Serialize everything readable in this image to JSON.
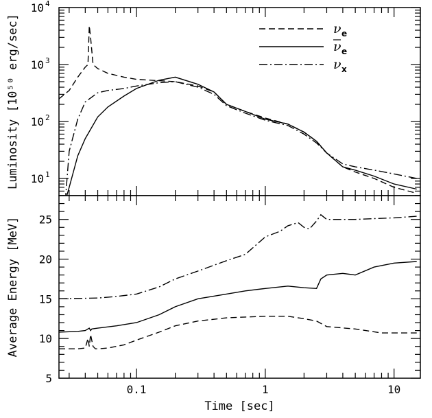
{
  "chart_data": [
    {
      "type": "line",
      "panel": "top",
      "ylabel": "Luminosity [10⁵⁰ erg/sec]",
      "xscale": "log",
      "yscale": "log",
      "xlim": [
        0.025,
        16
      ],
      "ylim": [
        5,
        10000
      ],
      "yticks": [
        10,
        100,
        1000,
        10000
      ],
      "ytick_labels": [
        {
          "base": "10",
          "exp": "1"
        },
        {
          "base": "10",
          "exp": "2"
        },
        {
          "base": "10",
          "exp": "3"
        },
        {
          "base": "10",
          "exp": "4"
        }
      ],
      "legend_position": "top-right",
      "legend": [
        {
          "symbol": "ν",
          "sub": "e",
          "bar": false,
          "style": "dashed"
        },
        {
          "symbol": "ν",
          "sub": "e",
          "bar": true,
          "style": "solid"
        },
        {
          "symbol": "ν",
          "sub": "x",
          "bar": false,
          "style": "dashdot"
        }
      ],
      "series": [
        {
          "style": "dashed",
          "x": [
            0.025,
            0.03,
            0.035,
            0.04,
            0.042,
            0.043,
            0.044,
            0.046,
            0.05,
            0.06,
            0.08,
            0.1,
            0.15,
            0.2,
            0.3,
            0.4,
            0.5,
            0.7,
            1.0,
            1.5,
            2.0,
            2.5,
            3.0,
            4.0,
            5.0,
            7.0,
            10.0,
            15.0
          ],
          "y": [
            250,
            350,
            600,
            900,
            1000,
            4800,
            3000,
            1000,
            850,
            700,
            600,
            550,
            520,
            500,
            420,
            330,
            200,
            150,
            115,
            90,
            65,
            45,
            28,
            16,
            13,
            10,
            7,
            5.5
          ]
        },
        {
          "style": "solid",
          "x": [
            0.028,
            0.03,
            0.035,
            0.04,
            0.05,
            0.06,
            0.08,
            0.1,
            0.15,
            0.2,
            0.3,
            0.4,
            0.5,
            0.7,
            1.0,
            1.5,
            2.0,
            2.5,
            3.0,
            4.0,
            5.0,
            7.0,
            10.0,
            15.0
          ],
          "y": [
            4,
            7,
            25,
            50,
            120,
            180,
            280,
            380,
            530,
            600,
            450,
            330,
            200,
            150,
            110,
            90,
            65,
            45,
            28,
            16,
            14,
            11,
            8,
            6.5
          ]
        },
        {
          "style": "dashdot",
          "x": [
            0.028,
            0.03,
            0.035,
            0.04,
            0.05,
            0.06,
            0.08,
            0.1,
            0.15,
            0.2,
            0.3,
            0.4,
            0.5,
            0.7,
            1.0,
            1.5,
            2.0,
            2.5,
            3.0,
            4.0,
            5.0,
            7.0,
            10.0,
            15.0
          ],
          "y": [
            4,
            30,
            110,
            220,
            320,
            350,
            380,
            420,
            480,
            500,
            400,
            300,
            190,
            140,
            105,
            85,
            60,
            42,
            28,
            18,
            16,
            14,
            12,
            10
          ]
        }
      ]
    },
    {
      "type": "line",
      "panel": "bottom",
      "xlabel": "Time [sec]",
      "ylabel": "Average Energy [MeV]",
      "xscale": "log",
      "xlim": [
        0.025,
        16
      ],
      "ylim": [
        5,
        28
      ],
      "yticks": [
        5,
        10,
        15,
        20,
        25
      ],
      "xticks": [
        0.1,
        1,
        10
      ],
      "xtick_labels": [
        "0.1",
        "1",
        "10"
      ],
      "series": [
        {
          "style": "dashed",
          "x": [
            0.025,
            0.035,
            0.04,
            0.042,
            0.043,
            0.044,
            0.046,
            0.048,
            0.05,
            0.06,
            0.08,
            0.1,
            0.15,
            0.2,
            0.3,
            0.5,
            0.7,
            1.0,
            1.5,
            2.0,
            2.5,
            3.0,
            5.0,
            8.0,
            10.0,
            15.0
          ],
          "y": [
            8.7,
            8.7,
            8.8,
            10.0,
            9.0,
            10.5,
            9.0,
            8.7,
            8.7,
            8.8,
            9.2,
            9.8,
            10.8,
            11.6,
            12.2,
            12.6,
            12.7,
            12.8,
            12.8,
            12.5,
            12.2,
            11.5,
            11.2,
            10.7,
            10.7,
            10.7
          ]
        },
        {
          "style": "solid",
          "x": [
            0.025,
            0.035,
            0.04,
            0.043,
            0.044,
            0.045,
            0.05,
            0.07,
            0.1,
            0.15,
            0.2,
            0.3,
            0.5,
            0.7,
            1.0,
            1.5,
            2.0,
            2.5,
            2.7,
            3.0,
            4.0,
            5.0,
            7.0,
            10.0,
            15.0
          ],
          "y": [
            10.8,
            10.9,
            11.0,
            11.3,
            11.0,
            11.2,
            11.3,
            11.6,
            12.0,
            13.0,
            14.0,
            15.0,
            15.6,
            16.0,
            16.3,
            16.6,
            16.4,
            16.3,
            17.5,
            18.0,
            18.2,
            18.0,
            19.0,
            19.5,
            19.7
          ]
        },
        {
          "style": "dashdot",
          "x": [
            0.025,
            0.05,
            0.07,
            0.1,
            0.15,
            0.2,
            0.3,
            0.5,
            0.7,
            1.0,
            1.3,
            1.5,
            1.8,
            2.0,
            2.2,
            2.5,
            2.7,
            3.0,
            4.0,
            5.0,
            7.0,
            10.0,
            15.0
          ],
          "y": [
            15.0,
            15.1,
            15.3,
            15.6,
            16.5,
            17.5,
            18.5,
            19.8,
            20.6,
            22.8,
            23.5,
            24.2,
            24.6,
            24.0,
            23.8,
            24.8,
            25.6,
            25.0,
            25.0,
            25.0,
            25.1,
            25.2,
            25.4
          ]
        }
      ]
    }
  ]
}
